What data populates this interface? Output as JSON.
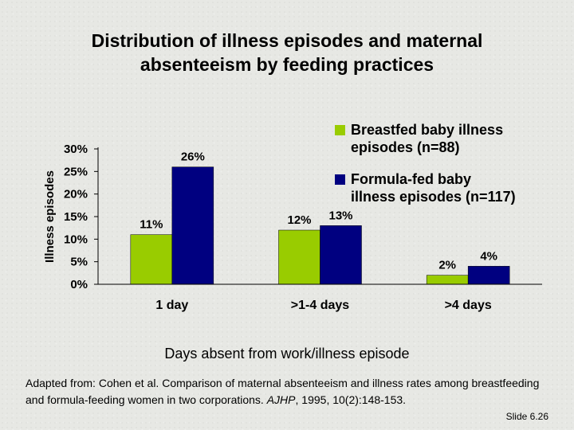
{
  "title_line1": "Distribution of illness episodes and maternal",
  "title_line2": "absenteeism by feeding practices",
  "chart_data": {
    "type": "bar",
    "categories": [
      "1 day",
      ">1-4 days",
      ">4 days"
    ],
    "series": [
      {
        "name": "Breastfed baby illness episodes (n=88)",
        "values": [
          11,
          12,
          2
        ],
        "labels": [
          "11%",
          "12%",
          "2%"
        ],
        "color": "#99cc00"
      },
      {
        "name": "Formula-fed baby illness episodes (n=117)",
        "values": [
          26,
          13,
          4
        ],
        "labels": [
          "26%",
          "13%",
          "4%"
        ],
        "color": "#000080"
      }
    ],
    "ylabel": "Illness episodes",
    "xlabel": "Days absent from work/illness episode",
    "ylim": [
      0,
      30
    ],
    "yticks": [
      "0%",
      "5%",
      "10%",
      "15%",
      "20%",
      "25%",
      "30%"
    ],
    "grid": false,
    "legend_position": "top-right"
  },
  "legend": {
    "item1_line1": "Breastfed baby illness",
    "item1_line2": "episodes (n=88)",
    "item2_line1": "Formula-fed baby",
    "item2_line2": "illness episodes (n=117)"
  },
  "source": {
    "text_before": "Adapted from: Cohen et al. Comparison of maternal absenteeism and illness rates among breastfeeding and formula-feeding women in two corporations. ",
    "journal": "AJHP",
    "text_after": ", 1995, 10(2):148-153."
  },
  "slide_number": "Slide 6.26"
}
